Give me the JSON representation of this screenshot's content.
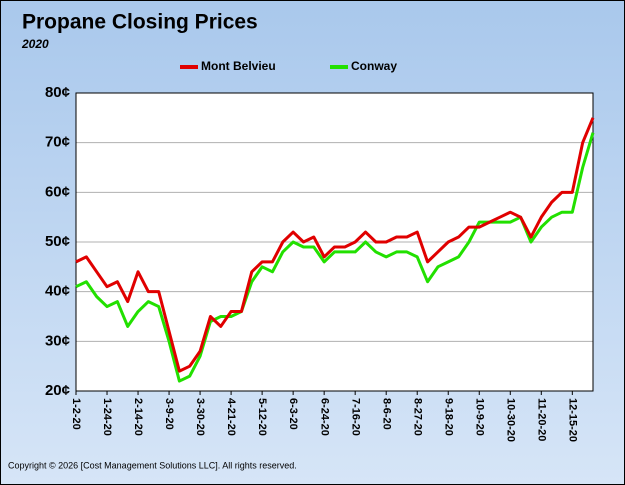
{
  "chart_data": {
    "type": "line",
    "title": "Propane Closing Prices",
    "subtitle": "2020",
    "note": "Copyright © 2026 [Cost Management Solutions LLC].  All rights reserved.",
    "categories": [
      "1-2-20",
      null,
      null,
      "1-24-20",
      null,
      null,
      "2-14-20",
      null,
      null,
      "3-9-20",
      null,
      null,
      "3-30-20",
      null,
      null,
      "4-21-20",
      null,
      null,
      "5-12-20",
      null,
      null,
      "6-3-20",
      null,
      null,
      "6-24-20",
      null,
      null,
      "7-16-20",
      null,
      null,
      "8-6-20",
      null,
      null,
      "8-27-20",
      null,
      null,
      "9-18-20",
      null,
      null,
      "10-9-20",
      null,
      null,
      "10-30-20",
      null,
      null,
      "11-20-20",
      null,
      null,
      "12-15-20",
      null,
      null
    ],
    "series": [
      {
        "name": "Mont Belvieu",
        "color": "#e00000",
        "values": [
          46,
          47,
          44,
          41,
          42,
          38,
          44,
          40,
          40,
          32,
          24,
          25,
          28,
          35,
          33,
          36,
          36,
          44,
          46,
          46,
          50,
          52,
          50,
          51,
          47,
          49,
          49,
          50,
          52,
          50,
          50,
          51,
          51,
          52,
          46,
          48,
          50,
          51,
          53,
          53,
          54,
          55,
          56,
          55,
          51,
          55,
          58,
          60,
          60,
          70,
          75
        ]
      },
      {
        "name": "Conway",
        "color": "#22e000",
        "values": [
          41,
          42,
          39,
          37,
          38,
          33,
          36,
          38,
          37,
          30,
          22,
          23,
          27,
          34,
          35,
          35,
          36,
          42,
          45,
          44,
          48,
          50,
          49,
          49,
          46,
          48,
          48,
          48,
          50,
          48,
          47,
          48,
          48,
          47,
          42,
          45,
          46,
          47,
          50,
          54,
          54,
          54,
          54,
          55,
          50,
          53,
          55,
          56,
          56,
          65,
          72
        ]
      }
    ],
    "ylim": [
      20,
      80
    ],
    "yticks": [
      {
        "value": 20,
        "label": "20¢"
      },
      {
        "value": 30,
        "label": "30¢"
      },
      {
        "value": 40,
        "label": "40¢"
      },
      {
        "value": 50,
        "label": "50¢"
      },
      {
        "value": 60,
        "label": "60¢"
      },
      {
        "value": 70,
        "label": "70¢"
      },
      {
        "value": 80,
        "label": "80¢"
      }
    ],
    "grid": true
  }
}
